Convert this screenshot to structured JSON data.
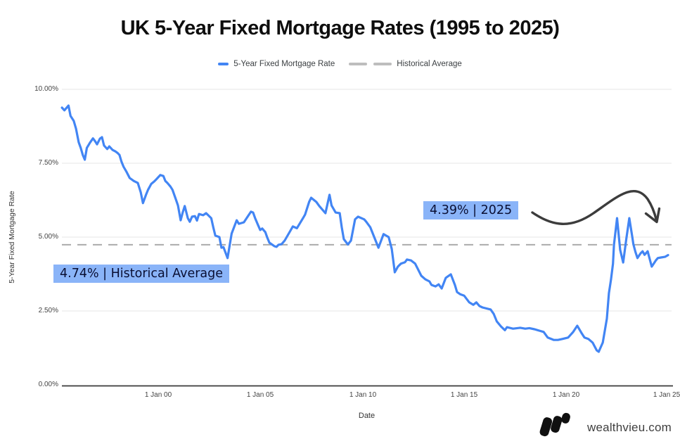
{
  "title": "UK 5-Year Fixed Mortgage Rates (1995 to 2025)",
  "legend": {
    "series_label": "5-Year Fixed Mortgage Rate",
    "average_label": "Historical Average"
  },
  "watermark": "wealthvieu.com",
  "colors": {
    "line_blue": "#4285f4",
    "average_dash_gray": "#ababab",
    "annotation_highlight": "#8ab4f8",
    "annotation_text": "#0a0f33",
    "arrow_dark": "#3c3c3c",
    "gridline": "#e6e6e6",
    "axis_line": "#3a3a3a"
  },
  "chart_data": {
    "type": "line",
    "title": "UK 5-Year Fixed Mortgage Rates (1995 to 2025)",
    "xlabel": "Date",
    "ylabel": "5-Year Fixed Mortgage Rate",
    "x_tick_labels": [
      "1 Jan 00",
      "1 Jan 05",
      "1 Jan 10",
      "1 Jan 15",
      "1 Jan 20",
      "1 Jan 25"
    ],
    "y_tick_labels": [
      "10.00%",
      "7.50%",
      "5.00%",
      "2.50%",
      "0.00%"
    ],
    "y_tick_values": [
      10,
      7.5,
      5,
      2.5,
      0
    ],
    "ylim": [
      0,
      10
    ],
    "x_range_years": [
      1995,
      2025
    ],
    "grid": "horizontal",
    "legend_position": "top-center",
    "historical_average": 4.74,
    "annotations": {
      "current": "4.39% | 2025",
      "average": "4.74% | Historical Average",
      "current_value": 4.39,
      "current_year": 2025
    },
    "series": [
      {
        "name": "5-Year Fixed Mortgage Rate",
        "color": "#4285f4",
        "points": [
          [
            1995.28,
            9.38
          ],
          [
            1995.4,
            9.29
          ],
          [
            1995.6,
            9.45
          ],
          [
            1995.7,
            9.1
          ],
          [
            1995.86,
            8.93
          ],
          [
            1995.97,
            8.67
          ],
          [
            1996.1,
            8.21
          ],
          [
            1996.2,
            8.02
          ],
          [
            1996.3,
            7.78
          ],
          [
            1996.4,
            7.62
          ],
          [
            1996.5,
            8.02
          ],
          [
            1996.66,
            8.2
          ],
          [
            1996.8,
            8.34
          ],
          [
            1996.9,
            8.25
          ],
          [
            1997.0,
            8.14
          ],
          [
            1997.14,
            8.33
          ],
          [
            1997.24,
            8.38
          ],
          [
            1997.34,
            8.1
          ],
          [
            1997.5,
            7.98
          ],
          [
            1997.6,
            8.07
          ],
          [
            1997.76,
            7.95
          ],
          [
            1997.9,
            7.9
          ],
          [
            1998.0,
            7.85
          ],
          [
            1998.1,
            7.78
          ],
          [
            1998.2,
            7.55
          ],
          [
            1998.3,
            7.38
          ],
          [
            1998.45,
            7.2
          ],
          [
            1998.6,
            7.0
          ],
          [
            1998.8,
            6.9
          ],
          [
            1999.0,
            6.83
          ],
          [
            1999.14,
            6.52
          ],
          [
            1999.25,
            6.15
          ],
          [
            1999.4,
            6.43
          ],
          [
            1999.5,
            6.6
          ],
          [
            1999.66,
            6.8
          ],
          [
            1999.8,
            6.88
          ],
          [
            1999.9,
            6.95
          ],
          [
            2000.1,
            7.1
          ],
          [
            2000.25,
            7.07
          ],
          [
            2000.35,
            6.9
          ],
          [
            2000.45,
            6.83
          ],
          [
            2000.6,
            6.71
          ],
          [
            2000.7,
            6.6
          ],
          [
            2000.86,
            6.29
          ],
          [
            2000.97,
            6.07
          ],
          [
            2001.1,
            5.57
          ],
          [
            2001.2,
            5.83
          ],
          [
            2001.3,
            6.05
          ],
          [
            2001.45,
            5.64
          ],
          [
            2001.55,
            5.52
          ],
          [
            2001.66,
            5.69
          ],
          [
            2001.8,
            5.71
          ],
          [
            2001.9,
            5.56
          ],
          [
            2002.0,
            5.78
          ],
          [
            2002.2,
            5.74
          ],
          [
            2002.35,
            5.81
          ],
          [
            2002.6,
            5.64
          ],
          [
            2002.7,
            5.33
          ],
          [
            2002.8,
            5.05
          ],
          [
            2003.0,
            5.0
          ],
          [
            2003.1,
            4.64
          ],
          [
            2003.2,
            4.66
          ],
          [
            2003.4,
            4.29
          ],
          [
            2003.6,
            5.12
          ],
          [
            2003.85,
            5.57
          ],
          [
            2003.95,
            5.45
          ],
          [
            2004.2,
            5.5
          ],
          [
            2004.4,
            5.71
          ],
          [
            2004.55,
            5.86
          ],
          [
            2004.65,
            5.83
          ],
          [
            2004.75,
            5.64
          ],
          [
            2004.9,
            5.4
          ],
          [
            2005.0,
            5.24
          ],
          [
            2005.1,
            5.29
          ],
          [
            2005.25,
            5.17
          ],
          [
            2005.35,
            4.98
          ],
          [
            2005.45,
            4.81
          ],
          [
            2005.6,
            4.74
          ],
          [
            2005.7,
            4.69
          ],
          [
            2005.8,
            4.67
          ],
          [
            2005.9,
            4.74
          ],
          [
            2006.05,
            4.76
          ],
          [
            2006.2,
            4.88
          ],
          [
            2006.4,
            5.12
          ],
          [
            2006.6,
            5.36
          ],
          [
            2006.8,
            5.3
          ],
          [
            2007.1,
            5.64
          ],
          [
            2007.2,
            5.76
          ],
          [
            2007.4,
            6.19
          ],
          [
            2007.5,
            6.33
          ],
          [
            2007.75,
            6.19
          ],
          [
            2007.9,
            6.05
          ],
          [
            2008.2,
            5.81
          ],
          [
            2008.4,
            6.43
          ],
          [
            2008.5,
            6.07
          ],
          [
            2008.7,
            5.83
          ],
          [
            2008.9,
            5.81
          ],
          [
            2009.0,
            5.33
          ],
          [
            2009.1,
            4.93
          ],
          [
            2009.3,
            4.75
          ],
          [
            2009.45,
            4.88
          ],
          [
            2009.65,
            5.6
          ],
          [
            2009.8,
            5.69
          ],
          [
            2010.1,
            5.6
          ],
          [
            2010.2,
            5.52
          ],
          [
            2010.4,
            5.33
          ],
          [
            2010.8,
            4.64
          ],
          [
            2011.05,
            5.1
          ],
          [
            2011.3,
            5.0
          ],
          [
            2011.45,
            4.6
          ],
          [
            2011.6,
            3.81
          ],
          [
            2011.75,
            4.0
          ],
          [
            2011.9,
            4.1
          ],
          [
            2012.1,
            4.15
          ],
          [
            2012.2,
            4.24
          ],
          [
            2012.4,
            4.21
          ],
          [
            2012.6,
            4.1
          ],
          [
            2012.9,
            3.69
          ],
          [
            2013.1,
            3.57
          ],
          [
            2013.3,
            3.5
          ],
          [
            2013.4,
            3.38
          ],
          [
            2013.6,
            3.33
          ],
          [
            2013.75,
            3.4
          ],
          [
            2013.9,
            3.26
          ],
          [
            2014.1,
            3.62
          ],
          [
            2014.35,
            3.74
          ],
          [
            2014.55,
            3.38
          ],
          [
            2014.65,
            3.14
          ],
          [
            2014.8,
            3.07
          ],
          [
            2015.0,
            3.02
          ],
          [
            2015.25,
            2.79
          ],
          [
            2015.45,
            2.71
          ],
          [
            2015.6,
            2.79
          ],
          [
            2015.75,
            2.67
          ],
          [
            2015.9,
            2.62
          ],
          [
            2016.3,
            2.55
          ],
          [
            2016.45,
            2.4
          ],
          [
            2016.6,
            2.15
          ],
          [
            2016.8,
            1.98
          ],
          [
            2017.0,
            1.85
          ],
          [
            2017.1,
            1.95
          ],
          [
            2017.4,
            1.9
          ],
          [
            2017.75,
            1.93
          ],
          [
            2018.0,
            1.9
          ],
          [
            2018.2,
            1.92
          ],
          [
            2018.45,
            1.88
          ],
          [
            2018.7,
            1.83
          ],
          [
            2018.9,
            1.79
          ],
          [
            2019.1,
            1.6
          ],
          [
            2019.4,
            1.52
          ],
          [
            2019.6,
            1.52
          ],
          [
            2019.8,
            1.55
          ],
          [
            2020.1,
            1.6
          ],
          [
            2020.35,
            1.79
          ],
          [
            2020.55,
            2.0
          ],
          [
            2020.75,
            1.76
          ],
          [
            2020.9,
            1.6
          ],
          [
            2021.1,
            1.55
          ],
          [
            2021.3,
            1.43
          ],
          [
            2021.5,
            1.17
          ],
          [
            2021.6,
            1.12
          ],
          [
            2021.8,
            1.43
          ],
          [
            2022.0,
            2.24
          ],
          [
            2022.1,
            3.1
          ],
          [
            2022.2,
            3.55
          ],
          [
            2022.3,
            4.1
          ],
          [
            2022.35,
            4.74
          ],
          [
            2022.5,
            5.64
          ],
          [
            2022.65,
            4.57
          ],
          [
            2022.8,
            4.14
          ],
          [
            2022.95,
            4.93
          ],
          [
            2023.1,
            5.64
          ],
          [
            2023.25,
            4.98
          ],
          [
            2023.3,
            4.76
          ],
          [
            2023.4,
            4.5
          ],
          [
            2023.5,
            4.29
          ],
          [
            2023.65,
            4.45
          ],
          [
            2023.75,
            4.52
          ],
          [
            2023.85,
            4.4
          ],
          [
            2024.0,
            4.52
          ],
          [
            2024.1,
            4.26
          ],
          [
            2024.2,
            4.0
          ],
          [
            2024.4,
            4.21
          ],
          [
            2024.5,
            4.29
          ],
          [
            2024.65,
            4.31
          ],
          [
            2024.85,
            4.33
          ],
          [
            2025.0,
            4.39
          ]
        ]
      }
    ]
  }
}
